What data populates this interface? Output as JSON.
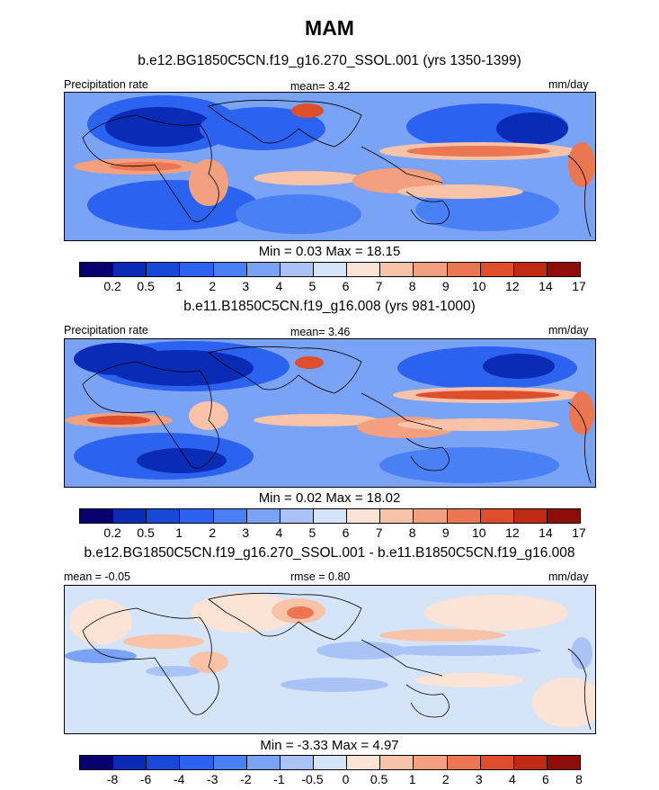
{
  "title": "MAM",
  "panels": [
    {
      "subtitle": "b.e12.BG1850C5CN.f19_g16.270_SSOL.001 (yrs 1350-1399)",
      "left_label": "Precipitation rate",
      "center_label": "mean=   3.42",
      "units": "mm/day",
      "stats": "Min =   0.03 Max =  18.15",
      "colorbar_ticks": [
        "0.2",
        "0.5",
        "1",
        "2",
        "3",
        "4",
        "5",
        "6",
        "7",
        "8",
        "9",
        "10",
        "12",
        "14",
        "17"
      ]
    },
    {
      "subtitle": "b.e11.B1850C5CN.f19_g16.008 (yrs 981-1000)",
      "left_label": "Precipitation rate",
      "center_label": "mean=   3.46",
      "units": "mm/day",
      "stats": "Min =   0.02 Max =  18.02",
      "colorbar_ticks": [
        "0.2",
        "0.5",
        "1",
        "2",
        "3",
        "4",
        "5",
        "6",
        "7",
        "8",
        "9",
        "10",
        "12",
        "14",
        "17"
      ]
    },
    {
      "subtitle": "b.e12.BG1850C5CN.f19_g16.270_SSOL.001 - b.e11.B1850C5CN.f19_g16.008",
      "left_label": "mean =  -0.05",
      "center_label": "rmse =   0.80",
      "units": "mm/day",
      "stats": "Min =  -3.33 Max =   4.97",
      "colorbar_ticks": [
        "-8",
        "-6",
        "-4",
        "-3",
        "-2",
        "-1",
        "-0.5",
        "0",
        "0.5",
        "1",
        "2",
        "3",
        "4",
        "6",
        "8"
      ]
    }
  ],
  "colors": {
    "colorbar": [
      "#08006e",
      "#0a2bb5",
      "#1848d8",
      "#2b62f0",
      "#4a80f5",
      "#7ba3f5",
      "#a9c3f6",
      "#d6e4f9",
      "#fbe3d6",
      "#f8c3a8",
      "#f2a07f",
      "#eb7652",
      "#de4d2c",
      "#c02a14",
      "#8f0d08"
    ],
    "land_outline": "#000000"
  }
}
